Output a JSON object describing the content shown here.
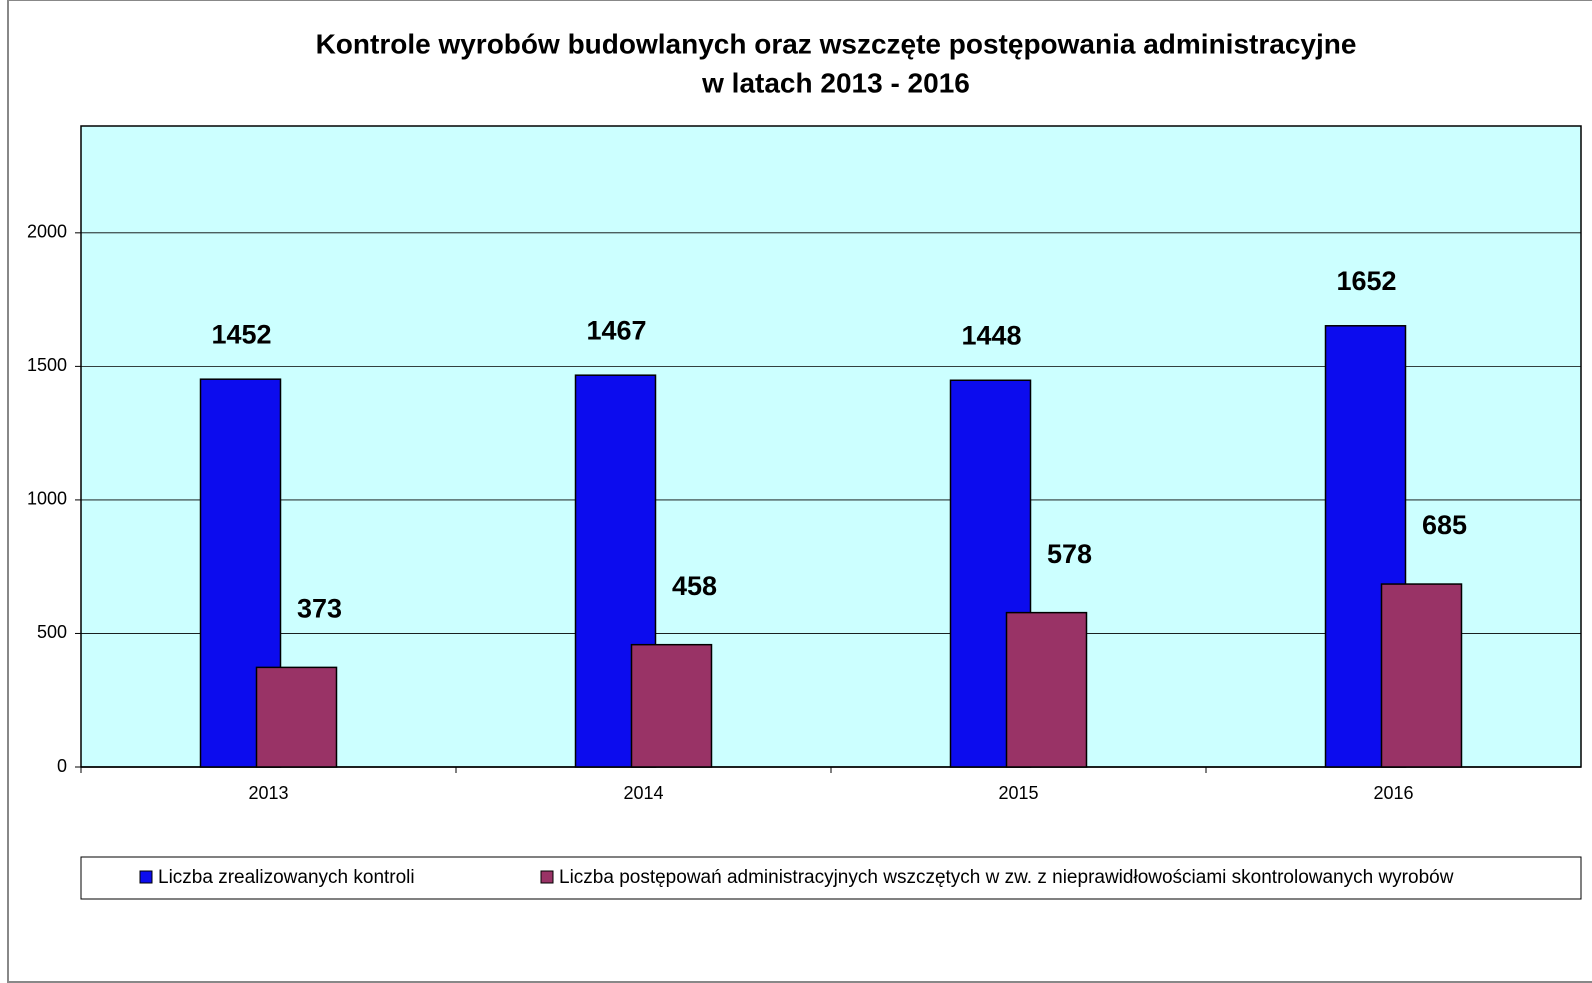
{
  "chart_data": {
    "type": "bar",
    "title": [
      "Kontrole wyrobów budowlanych oraz wszczęte postępowania administracyjne",
      "w latach 2013 - 2016"
    ],
    "categories": [
      "2013",
      "2014",
      "2015",
      "2016"
    ],
    "series": [
      {
        "name": "Liczba zrealizowanych kontroli",
        "color": "#0c0cee",
        "values": [
          1452,
          1467,
          1448,
          1652
        ]
      },
      {
        "name": "Liczba postępowań administracyjnych wszczętych w zw. z nieprawidłowościami skontrolowanych wyrobów",
        "color": "#993366",
        "values": [
          373,
          458,
          578,
          685
        ]
      }
    ],
    "ylim": [
      0,
      2400
    ],
    "yticks": [
      0,
      500,
      1000,
      1500,
      2000
    ],
    "grid": true,
    "plot_background": "#ccffff",
    "legend": "bottom"
  }
}
